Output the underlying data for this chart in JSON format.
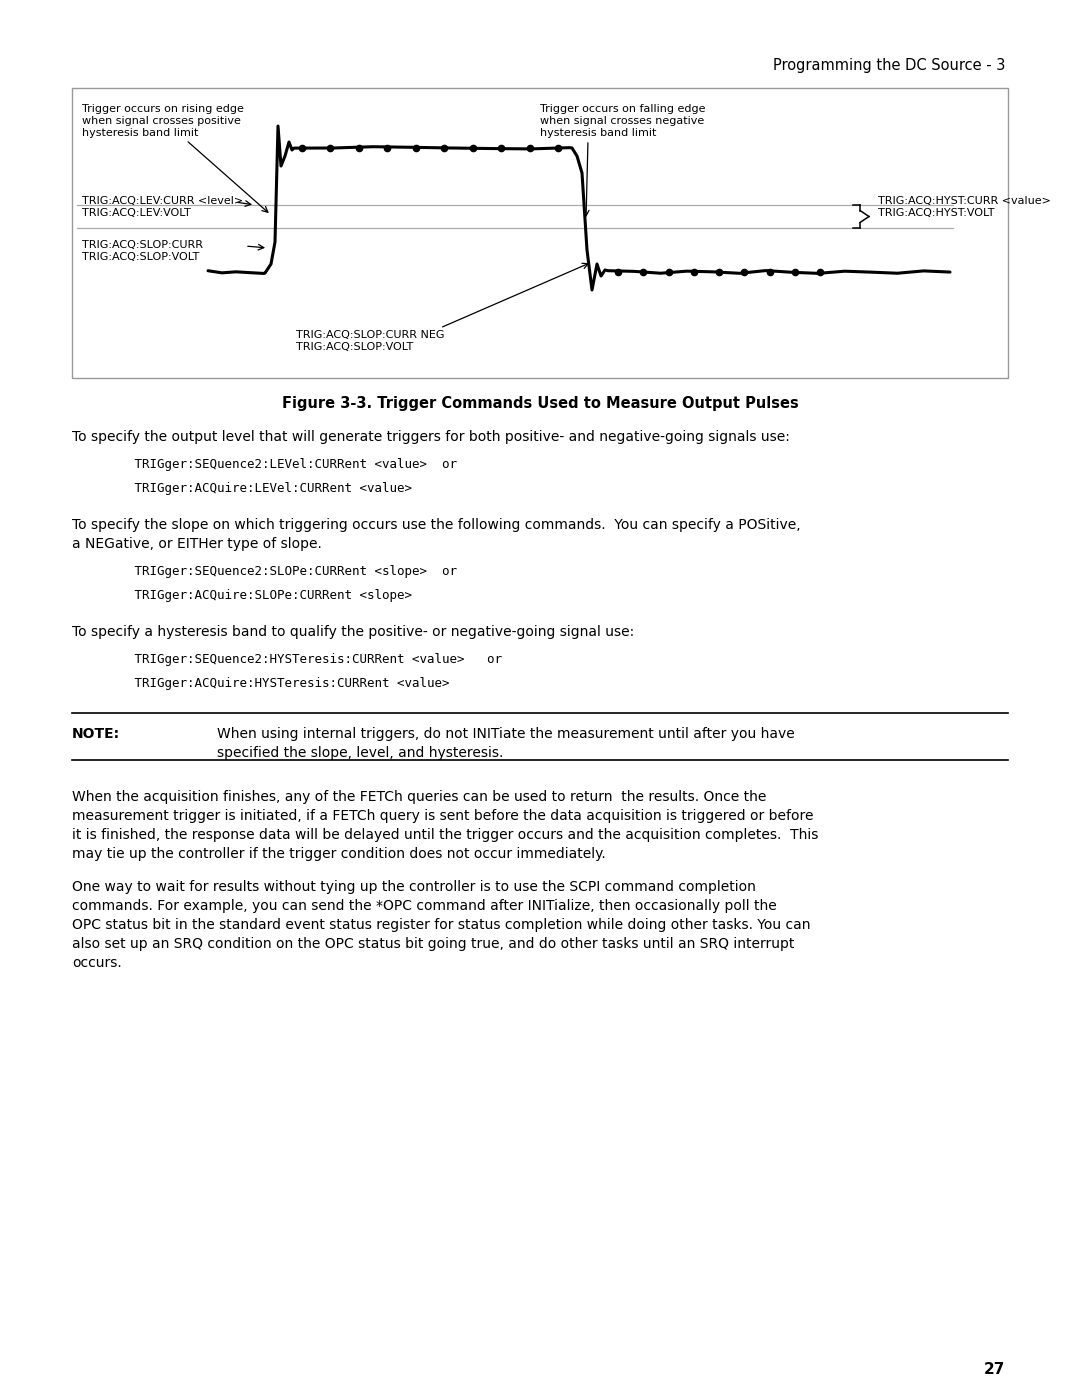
{
  "header_text": "Programming the DC Source - 3",
  "figure_caption": "Figure 3-3. Trigger Commands Used to Measure Output Pulses",
  "page_number": "27",
  "bg_color": "#ffffff",
  "diagram_labels": {
    "top_left_line1": "Trigger occurs on rising edge",
    "top_left_line2": "when signal crosses positive",
    "top_left_line3": "hysteresis band limit",
    "top_right_line1": "Trigger occurs on falling edge",
    "top_right_line2": "when signal crosses negative",
    "top_right_line3": "hysteresis band limit",
    "left_level_line1": "TRIG:ACQ:LEV:CURR <level>",
    "left_level_line2": "TRIG:ACQ:LEV:VOLT",
    "left_slope_line1": "TRIG:ACQ:SLOP:CURR",
    "left_slope_line2": "TRIG:ACQ:SLOP:VOLT",
    "bottom_center_line1": "TRIG:ACQ:SLOP:CURR NEG",
    "bottom_center_line2": "TRIG:ACQ:SLOP:VOLT",
    "right_hyst_line1": "TRIG:ACQ:HYST:CURR <value>",
    "right_hyst_line2": "TRIG:ACQ:HYST:VOLT"
  },
  "para1_header": "To specify the output level that will generate triggers for both positive- and negative-going signals use:",
  "para1_code1": "   TRIGger:SEQuence2:LEVel:CURRent <value>  or",
  "para1_code2": "   TRIGger:ACQuire:LEVel:CURRent <value>",
  "para2_header1": "To specify the slope on which triggering occurs use the following commands.  You can specify a POSitive,",
  "para2_header2": "a NEGative, or EITHer type of slope.",
  "para2_code1": "   TRIGger:SEQuence2:SLOPe:CURRent <slope>  or",
  "para2_code2": "   TRIGger:ACQuire:SLOPe:CURRent <slope>",
  "para3_header": "To specify a hysteresis band to qualify the positive- or negative-going signal use:",
  "para3_code1": "   TRIGger:SEQuence2:HYSTeresis:CURRent <value>   or",
  "para3_code2": "   TRIGger:ACQuire:HYSTeresis:CURRent <value>",
  "note_label": "NOTE:",
  "note_line1": "When using internal triggers, do not INITiate the measurement until after you have",
  "note_line2": "specified the slope, level, and hysteresis.",
  "body_para1_lines": [
    "When the acquisition finishes, any of the FETCh queries can be used to return  the results. Once the",
    "measurement trigger is initiated, if a FETCh query is sent before the data acquisition is triggered or before",
    "it is finished, the response data will be delayed until the trigger occurs and the acquisition completes.  This",
    "may tie up the controller if the trigger condition does not occur immediately."
  ],
  "body_para2_lines": [
    "One way to wait for results without tying up the controller is to use the SCPI command completion",
    "commands. For example, you can send the *OPC command after INITialize, then occasionally poll the",
    "OPC status bit in the standard event status register for status completion while doing other tasks. You can",
    "also set up an SRQ condition on the OPC status bit going true, and do other tasks until an SRQ interrupt",
    "occurs."
  ]
}
